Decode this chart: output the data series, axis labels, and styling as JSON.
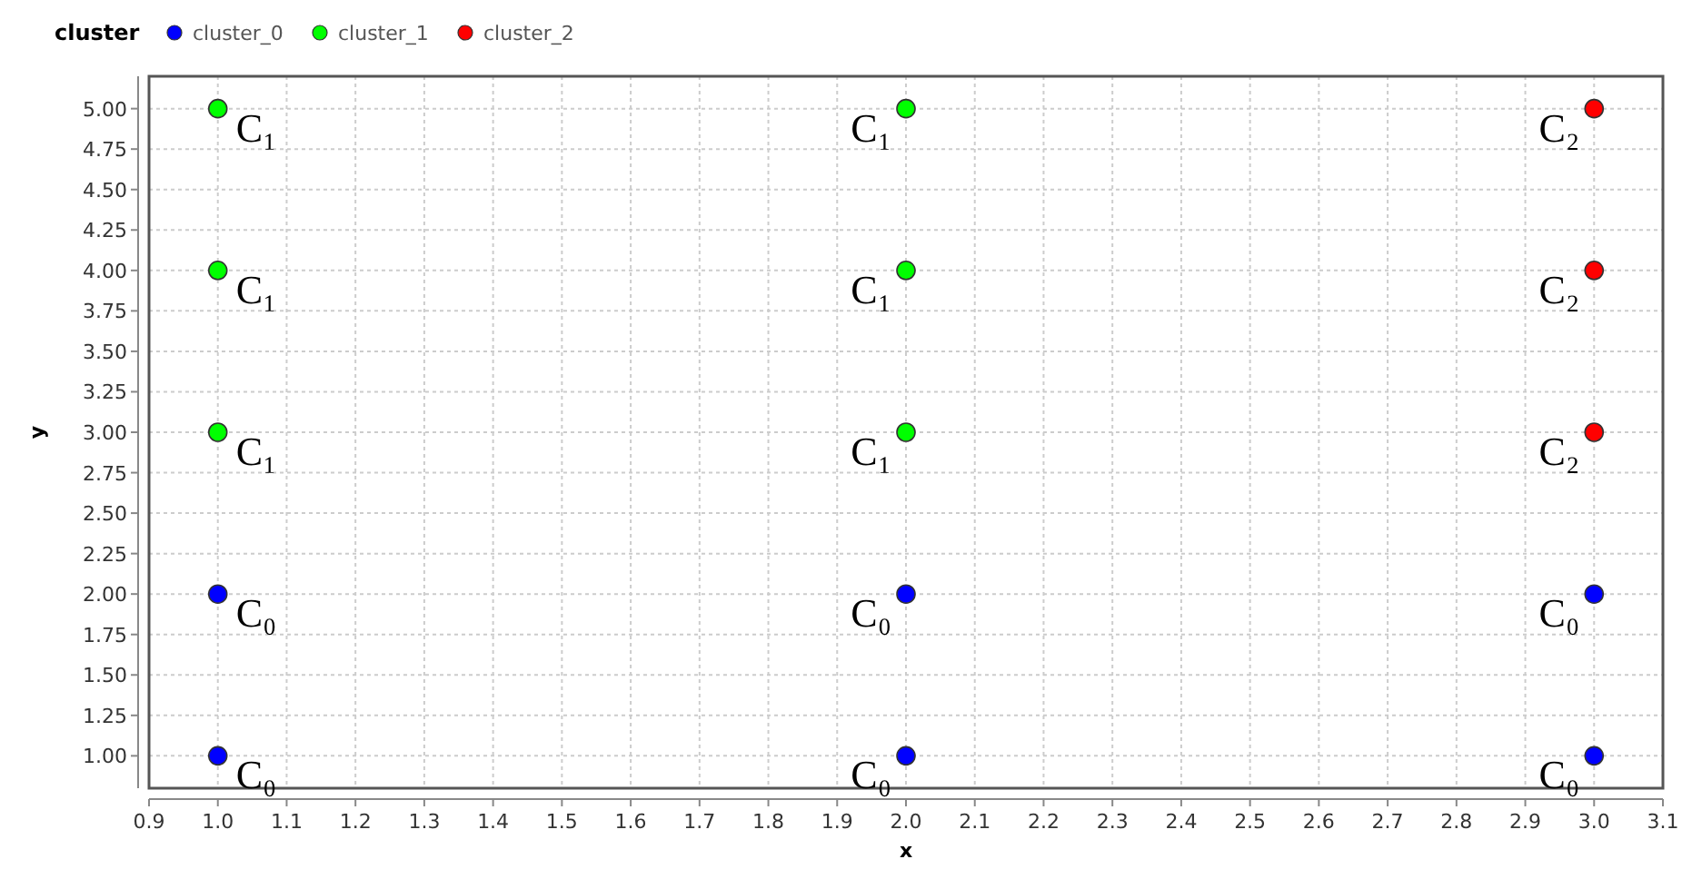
{
  "chart_data": {
    "type": "scatter",
    "xlabel": "x",
    "ylabel": "y",
    "legend_title": "cluster",
    "legend": "top left",
    "grid": true,
    "marker": "circle",
    "xlim": [
      0.9,
      3.1
    ],
    "xticks": [
      0.9,
      {
        "value": 1,
        "label": "1.0"
      },
      1.1,
      1.2,
      1.3,
      1.4,
      1.5,
      1.6,
      1.7,
      1.8,
      1.9,
      {
        "value": 2,
        "label": "2.0"
      },
      2.1,
      2.2,
      2.3,
      2.4,
      2.5,
      2.6,
      2.7,
      2.8,
      2.9,
      {
        "value": 3,
        "label": "3.0"
      },
      3.1
    ],
    "ylim": [
      0.8,
      5.2
    ],
    "yticks": [
      {
        "value": 1,
        "label": "1.00"
      },
      {
        "value": 1.25,
        "label": "1.25"
      },
      {
        "value": 1.5,
        "label": "1.50"
      },
      {
        "value": 1.75,
        "label": "1.75"
      },
      {
        "value": 2,
        "label": "2.00"
      },
      {
        "value": 2.25,
        "label": "2.25"
      },
      {
        "value": 2.5,
        "label": "2.50"
      },
      {
        "value": 2.75,
        "label": "2.75"
      },
      {
        "value": 3,
        "label": "3.00"
      },
      {
        "value": 3.25,
        "label": "3.25"
      },
      {
        "value": 3.5,
        "label": "3.50"
      },
      {
        "value": 3.75,
        "label": "3.75"
      },
      {
        "value": 4,
        "label": "4.00"
      },
      {
        "value": 4.25,
        "label": "4.25"
      },
      {
        "value": 4.5,
        "label": "4.50"
      },
      {
        "value": 4.75,
        "label": "4.75"
      },
      {
        "value": 5,
        "label": "5.00"
      }
    ],
    "series": [
      {
        "name": "cluster_0",
        "color": "#0000ff",
        "x": [
          1,
          1,
          2,
          2,
          3,
          3
        ],
        "values": [
          1,
          2,
          1,
          2,
          1,
          2
        ]
      },
      {
        "name": "cluster_1",
        "color": "#00ff00",
        "x": [
          1,
          1,
          1,
          2,
          2,
          2
        ],
        "values": [
          3,
          4,
          5,
          3,
          4,
          5
        ]
      },
      {
        "name": "cluster_2",
        "color": "#ff0000",
        "x": [
          3,
          3,
          3
        ],
        "values": [
          3,
          4,
          5
        ]
      }
    ],
    "annotations": [
      {
        "text": "C₀",
        "x": 1,
        "y": 1
      },
      {
        "text": "C₀",
        "x": 1,
        "y": 2
      },
      {
        "text": "C₁",
        "x": 1,
        "y": 3
      },
      {
        "text": "C₁",
        "x": 1,
        "y": 4
      },
      {
        "text": "C₁",
        "x": 1,
        "y": 5
      },
      {
        "text": "C₀",
        "x": 2,
        "y": 1
      },
      {
        "text": "C₀",
        "x": 2,
        "y": 2
      },
      {
        "text": "C₁",
        "x": 2,
        "y": 3
      },
      {
        "text": "C₁",
        "x": 2,
        "y": 4
      },
      {
        "text": "C₁",
        "x": 2,
        "y": 5
      },
      {
        "text": "C₀",
        "x": 3,
        "y": 1
      },
      {
        "text": "C₀",
        "x": 3,
        "y": 2
      },
      {
        "text": "C₂",
        "x": 3,
        "y": 3
      },
      {
        "text": "C₂",
        "x": 3,
        "y": 4
      },
      {
        "text": "C₂",
        "x": 3,
        "y": 5
      }
    ]
  }
}
